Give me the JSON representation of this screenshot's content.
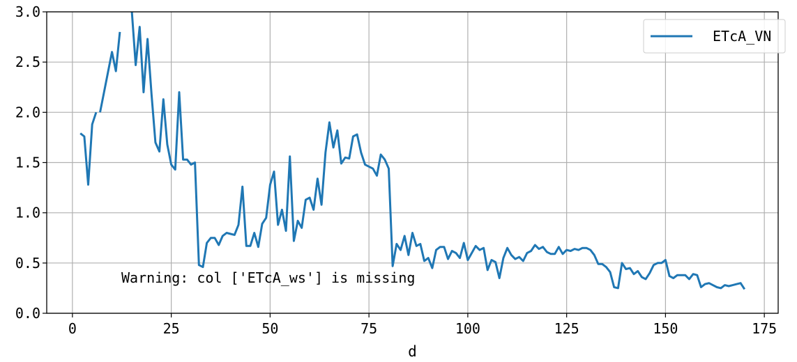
{
  "chart_data": {
    "type": "line",
    "xlabel": "d",
    "ylabel": "",
    "xlim": [
      -6.5,
      178.5
    ],
    "ylim": [
      0.0,
      3.0
    ],
    "xticks": [
      0,
      25,
      50,
      75,
      100,
      125,
      150,
      175
    ],
    "yticks": [
      0.0,
      0.5,
      1.0,
      1.5,
      2.0,
      2.5,
      3.0
    ],
    "xtick_labels": [
      "0",
      "25",
      "50",
      "75",
      "100",
      "125",
      "150",
      "175"
    ],
    "ytick_labels": [
      "0.0",
      "0.5",
      "1.0",
      "1.5",
      "2.0",
      "2.5",
      "3.0"
    ],
    "grid": true,
    "legend_position": "top-right",
    "annotation": "Warning: col ['ETcA_ws'] is missing",
    "series": [
      {
        "name": "ETcA_VN",
        "color": "#1f77b4",
        "segments": [
          [
            [
              2,
              1.79
            ],
            [
              3,
              1.76
            ],
            [
              4,
              1.28
            ],
            [
              5,
              1.88
            ],
            [
              6,
              2.0
            ]
          ],
          [
            [
              7,
              2.0
            ],
            [
              8,
              2.2
            ],
            [
              9,
              2.4
            ],
            [
              10,
              2.6
            ],
            [
              11,
              2.41
            ],
            [
              12,
              2.8
            ]
          ],
          [
            [
              15,
              3.02
            ],
            [
              16,
              2.47
            ],
            [
              17,
              2.85
            ],
            [
              18,
              2.2
            ],
            [
              19,
              2.73
            ],
            [
              20,
              2.18
            ],
            [
              21,
              1.7
            ],
            [
              22,
              1.61
            ],
            [
              23,
              2.13
            ],
            [
              24,
              1.68
            ],
            [
              25,
              1.48
            ],
            [
              26,
              1.43
            ],
            [
              27,
              2.2
            ],
            [
              28,
              1.53
            ],
            [
              29,
              1.53
            ],
            [
              30,
              1.48
            ],
            [
              31,
              1.5
            ],
            [
              32,
              0.48
            ],
            [
              33,
              0.46
            ],
            [
              34,
              0.7
            ],
            [
              35,
              0.75
            ],
            [
              36,
              0.75
            ],
            [
              37,
              0.68
            ],
            [
              38,
              0.77
            ],
            [
              39,
              0.8
            ],
            [
              40,
              0.79
            ],
            [
              41,
              0.78
            ],
            [
              42,
              0.88
            ],
            [
              43,
              1.26
            ],
            [
              44,
              0.67
            ],
            [
              45,
              0.67
            ],
            [
              46,
              0.8
            ],
            [
              47,
              0.66
            ],
            [
              48,
              0.89
            ],
            [
              49,
              0.95
            ],
            [
              50,
              1.28
            ],
            [
              51,
              1.41
            ],
            [
              52,
              0.88
            ],
            [
              53,
              1.03
            ],
            [
              54,
              0.82
            ],
            [
              55,
              1.56
            ],
            [
              56,
              0.72
            ],
            [
              57,
              0.92
            ],
            [
              58,
              0.85
            ],
            [
              59,
              1.13
            ],
            [
              60,
              1.15
            ],
            [
              61,
              1.03
            ],
            [
              62,
              1.34
            ],
            [
              63,
              1.08
            ],
            [
              64,
              1.6
            ],
            [
              65,
              1.9
            ],
            [
              66,
              1.65
            ],
            [
              67,
              1.82
            ],
            [
              68,
              1.49
            ],
            [
              69,
              1.55
            ],
            [
              70,
              1.54
            ],
            [
              71,
              1.76
            ],
            [
              72,
              1.78
            ],
            [
              73,
              1.6
            ],
            [
              74,
              1.48
            ],
            [
              75,
              1.46
            ],
            [
              76,
              1.44
            ],
            [
              77,
              1.37
            ],
            [
              78,
              1.58
            ],
            [
              79,
              1.53
            ],
            [
              80,
              1.44
            ],
            [
              81,
              0.47
            ],
            [
              82,
              0.69
            ],
            [
              83,
              0.63
            ],
            [
              84,
              0.77
            ],
            [
              85,
              0.58
            ],
            [
              86,
              0.8
            ],
            [
              87,
              0.67
            ],
            [
              88,
              0.69
            ],
            [
              89,
              0.52
            ],
            [
              90,
              0.55
            ],
            [
              91,
              0.45
            ],
            [
              92,
              0.63
            ],
            [
              93,
              0.66
            ],
            [
              94,
              0.66
            ],
            [
              95,
              0.54
            ],
            [
              96,
              0.62
            ],
            [
              97,
              0.6
            ],
            [
              98,
              0.55
            ],
            [
              99,
              0.7
            ],
            [
              100,
              0.53
            ],
            [
              101,
              0.6
            ],
            [
              102,
              0.67
            ],
            [
              103,
              0.63
            ],
            [
              104,
              0.65
            ],
            [
              105,
              0.43
            ],
            [
              106,
              0.53
            ],
            [
              107,
              0.51
            ],
            [
              108,
              0.35
            ],
            [
              109,
              0.55
            ],
            [
              110,
              0.65
            ],
            [
              111,
              0.58
            ],
            [
              112,
              0.54
            ],
            [
              113,
              0.56
            ],
            [
              114,
              0.52
            ],
            [
              115,
              0.6
            ],
            [
              116,
              0.62
            ],
            [
              117,
              0.68
            ],
            [
              118,
              0.64
            ],
            [
              119,
              0.66
            ],
            [
              120,
              0.61
            ],
            [
              121,
              0.59
            ],
            [
              122,
              0.59
            ],
            [
              123,
              0.66
            ],
            [
              124,
              0.59
            ],
            [
              125,
              0.63
            ],
            [
              126,
              0.62
            ],
            [
              127,
              0.64
            ],
            [
              128,
              0.63
            ],
            [
              129,
              0.65
            ],
            [
              130,
              0.65
            ],
            [
              131,
              0.63
            ],
            [
              132,
              0.58
            ],
            [
              133,
              0.49
            ],
            [
              134,
              0.49
            ],
            [
              135,
              0.46
            ],
            [
              136,
              0.41
            ],
            [
              137,
              0.26
            ],
            [
              138,
              0.25
            ],
            [
              139,
              0.5
            ],
            [
              140,
              0.44
            ],
            [
              141,
              0.45
            ],
            [
              142,
              0.39
            ],
            [
              143,
              0.42
            ],
            [
              144,
              0.36
            ],
            [
              145,
              0.34
            ],
            [
              146,
              0.4
            ],
            [
              147,
              0.48
            ],
            [
              148,
              0.5
            ],
            [
              149,
              0.5
            ],
            [
              150,
              0.53
            ],
            [
              151,
              0.37
            ],
            [
              152,
              0.35
            ],
            [
              153,
              0.38
            ],
            [
              154,
              0.38
            ],
            [
              155,
              0.38
            ],
            [
              156,
              0.34
            ],
            [
              157,
              0.39
            ],
            [
              158,
              0.38
            ],
            [
              159,
              0.26
            ],
            [
              160,
              0.29
            ],
            [
              161,
              0.3
            ],
            [
              162,
              0.28
            ],
            [
              163,
              0.26
            ],
            [
              164,
              0.25
            ],
            [
              165,
              0.28
            ],
            [
              166,
              0.27
            ],
            [
              167,
              0.28
            ],
            [
              168,
              0.29
            ],
            [
              169,
              0.3
            ],
            [
              170,
              0.24
            ]
          ]
        ]
      }
    ]
  }
}
